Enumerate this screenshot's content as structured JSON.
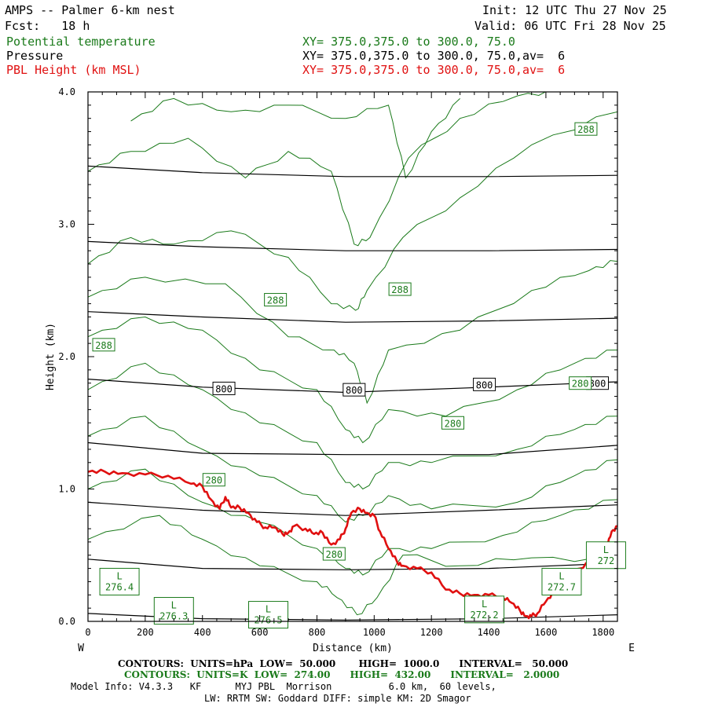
{
  "header": {
    "title": "AMPS -- Palmer 6-km nest",
    "init": "Init: 12 UTC Thu 27 Nov 25",
    "fcst": "Fcst:   18 h",
    "valid": "Valid: 06 UTC Fri 28 Nov 25",
    "field1_name": "Potential temperature",
    "field1_xy": "XY= 375.0,375.0 to 300.0, 75.0",
    "field2_name": "Pressure",
    "field2_xy": "XY= 375.0,375.0 to 300.0, 75.0,av=  6",
    "field3_name": "PBL Height (km MSL)",
    "field3_xy": "XY= 375.0,375.0 to 300.0, 75.0,av=  6"
  },
  "footer": {
    "pressure_contours": "CONTOURS:  UNITS=hPa  LOW=  50.000       HIGH=  1000.0      INTERVAL=   50.000",
    "theta_contours": "CONTOURS:  UNITS=K  LOW=  274.00      HIGH=  432.00      INTERVAL=   2.0000",
    "model_info1": "Model Info: V4.3.3   KF      MYJ PBL  Morrison          6.0 km,  60 levels,",
    "model_info2": "LW: RRTM SW: Goddard DIFF: simple KM: 2D Smagor"
  },
  "colors": {
    "theta": "#1a7a1a",
    "pressure": "#000000",
    "pbl": "#e01010"
  },
  "chart_data": {
    "type": "line",
    "xlabel": "Distance (km)",
    "ylabel": "Height (km)",
    "xlim": [
      0,
      1850
    ],
    "ylim": [
      0,
      4.0
    ],
    "xticks": [
      0,
      200,
      400,
      600,
      800,
      1000,
      1200,
      1400,
      1600,
      1800
    ],
    "yticks": [
      0.0,
      1.0,
      2.0,
      3.0,
      4.0
    ],
    "x_left_label": "W",
    "x_right_label": "E",
    "pressure_lines": [
      {
        "x": [
          0,
          400,
          900,
          1400,
          1850
        ],
        "y": [
          3.44,
          3.39,
          3.36,
          3.36,
          3.37
        ]
      },
      {
        "x": [
          0,
          400,
          900,
          1400,
          1850
        ],
        "y": [
          2.87,
          2.83,
          2.8,
          2.8,
          2.81
        ]
      },
      {
        "x": [
          0,
          400,
          900,
          1400,
          1850
        ],
        "y": [
          2.34,
          2.3,
          2.26,
          2.27,
          2.29
        ]
      },
      {
        "x": [
          0,
          400,
          900,
          1400,
          1850
        ],
        "y": [
          1.83,
          1.77,
          1.73,
          1.77,
          1.81
        ]
      },
      {
        "x": [
          0,
          400,
          900,
          1400,
          1850
        ],
        "y": [
          1.35,
          1.27,
          1.26,
          1.26,
          1.33
        ]
      },
      {
        "x": [
          0,
          400,
          900,
          1400,
          1850
        ],
        "y": [
          0.9,
          0.84,
          0.8,
          0.84,
          0.88
        ]
      },
      {
        "x": [
          0,
          400,
          900,
          1400,
          1850
        ],
        "y": [
          0.47,
          0.4,
          0.39,
          0.4,
          0.44
        ]
      },
      {
        "x": [
          0,
          400,
          900,
          1400,
          1850
        ],
        "y": [
          0.06,
          0.02,
          0.01,
          0.02,
          0.05
        ]
      }
    ],
    "theta_lines": [
      {
        "x": [
          0,
          250,
          400,
          600,
          800,
          870,
          940,
          1010,
          1100,
          1300,
          1550,
          1850
        ],
        "y": [
          0.62,
          0.8,
          0.62,
          0.42,
          0.3,
          0.18,
          0.05,
          0.18,
          0.5,
          0.42,
          0.48,
          0.45
        ]
      },
      {
        "x": [
          0,
          200,
          400,
          600,
          800,
          900,
          960,
          1050,
          1200,
          1450,
          1650,
          1850
        ],
        "y": [
          1.0,
          1.15,
          0.9,
          0.75,
          0.55,
          0.4,
          0.35,
          0.55,
          0.55,
          0.65,
          0.8,
          0.92
        ]
      },
      {
        "x": [
          0,
          200,
          400,
          600,
          800,
          900,
          960,
          1050,
          1200,
          1500,
          1700,
          1850
        ],
        "y": [
          1.4,
          1.55,
          1.3,
          1.1,
          0.95,
          0.75,
          0.8,
          0.95,
          0.85,
          0.9,
          1.1,
          1.22
        ]
      },
      {
        "x": [
          0,
          200,
          400,
          600,
          800,
          900,
          960,
          1050,
          1200,
          1500,
          1700,
          1850
        ],
        "y": [
          1.75,
          1.95,
          1.75,
          1.5,
          1.35,
          1.05,
          1.0,
          1.2,
          1.2,
          1.3,
          1.45,
          1.55
        ]
      },
      {
        "x": [
          0,
          200,
          400,
          600,
          800,
          900,
          960,
          1050,
          1250,
          1500,
          1700,
          1850
        ],
        "y": [
          2.15,
          2.3,
          2.2,
          1.9,
          1.75,
          1.45,
          1.35,
          1.6,
          1.55,
          1.75,
          1.95,
          2.05
        ]
      },
      {
        "x": [
          0,
          200,
          480,
          700,
          860,
          930,
          975,
          1050,
          1300,
          1550,
          1750,
          1850
        ],
        "y": [
          2.45,
          2.6,
          2.55,
          2.15,
          2.05,
          1.95,
          1.65,
          2.05,
          2.2,
          2.5,
          2.65,
          2.72
        ]
      },
      {
        "x": [
          0,
          150,
          300,
          500,
          700,
          850,
          935,
          975,
          1100,
          1300,
          1550,
          1850
        ],
        "y": [
          2.7,
          2.9,
          2.85,
          2.95,
          2.75,
          2.4,
          2.35,
          2.5,
          2.9,
          3.2,
          3.6,
          3.85
        ]
      },
      {
        "x": [
          0,
          150,
          350,
          550,
          700,
          850,
          930,
          985,
          1120,
          1300,
          1500,
          1650
        ],
        "y": [
          3.4,
          3.55,
          3.65,
          3.35,
          3.55,
          3.4,
          2.85,
          2.9,
          3.5,
          3.8,
          3.97,
          4.0
        ]
      },
      {
        "x": [
          150,
          300,
          500,
          700,
          900,
          1050,
          1110,
          1200,
          1300
        ],
        "y": [
          3.78,
          3.95,
          3.85,
          3.9,
          3.8,
          3.9,
          3.35,
          3.7,
          3.95
        ]
      }
    ],
    "pbl_height": {
      "x": [
        0,
        60,
        120,
        200,
        280,
        360,
        400,
        430,
        460,
        480,
        500,
        530,
        560,
        590,
        620,
        650,
        680,
        700,
        720,
        760,
        790,
        820,
        850,
        880,
        900,
        920,
        950,
        975,
        1000,
        1020,
        1050,
        1080,
        1100,
        1150,
        1200,
        1250,
        1300,
        1350,
        1400,
        1450,
        1480,
        1510,
        1530,
        1550,
        1570,
        1600,
        1630,
        1660,
        1700,
        1740,
        1780,
        1810,
        1830,
        1850
      ],
      "y": [
        1.13,
        1.13,
        1.12,
        1.11,
        1.1,
        1.04,
        1.02,
        0.92,
        0.85,
        0.94,
        0.86,
        0.86,
        0.82,
        0.75,
        0.71,
        0.71,
        0.66,
        0.67,
        0.72,
        0.7,
        0.66,
        0.67,
        0.58,
        0.62,
        0.7,
        0.82,
        0.85,
        0.82,
        0.8,
        0.68,
        0.55,
        0.45,
        0.42,
        0.4,
        0.37,
        0.24,
        0.21,
        0.2,
        0.2,
        0.18,
        0.14,
        0.08,
        0.04,
        0.04,
        0.06,
        0.15,
        0.22,
        0.3,
        0.36,
        0.44,
        0.5,
        0.55,
        0.68,
        0.72
      ]
    },
    "pressure_labels": [
      {
        "text": "800",
        "x": 475,
        "y": 1.76
      },
      {
        "text": "800",
        "x": 930,
        "y": 1.75
      },
      {
        "text": "800",
        "x": 1385,
        "y": 1.79
      },
      {
        "text": "800",
        "x": 1780,
        "y": 1.8
      }
    ],
    "theta_labels": [
      {
        "text": "288",
        "x": 55,
        "y": 2.09
      },
      {
        "text": "288",
        "x": 655,
        "y": 2.43
      },
      {
        "text": "288",
        "x": 1090,
        "y": 2.51
      },
      {
        "text": "288",
        "x": 1740,
        "y": 3.72
      },
      {
        "text": "280",
        "x": 440,
        "y": 1.07
      },
      {
        "text": "280",
        "x": 1275,
        "y": 1.5
      },
      {
        "text": "280",
        "x": 1720,
        "y": 1.8
      },
      {
        "text": "280",
        "x": 860,
        "y": 0.51
      }
    ],
    "lows": [
      {
        "text": "L\n276.4",
        "x": 110,
        "y": 0.3
      },
      {
        "text": "L\n276.3",
        "x": 300,
        "y": 0.08
      },
      {
        "text": "L\n276.5",
        "x": 630,
        "y": 0.05
      },
      {
        "text": "L\n272.2",
        "x": 1385,
        "y": 0.09
      },
      {
        "text": "L\n272.7",
        "x": 1655,
        "y": 0.3
      },
      {
        "text": "L\n272",
        "x": 1810,
        "y": 0.5
      }
    ]
  }
}
